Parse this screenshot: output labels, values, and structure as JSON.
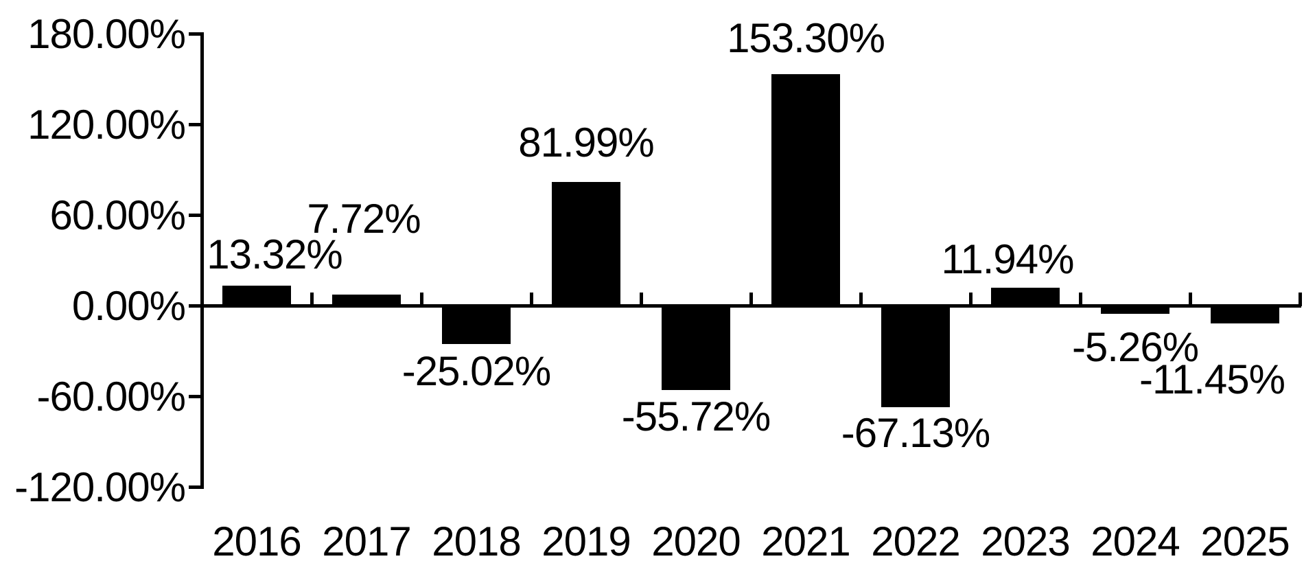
{
  "chart_data": {
    "type": "bar",
    "title": "",
    "xlabel": "",
    "ylabel": "",
    "categories": [
      "2016",
      "2017",
      "2018",
      "2019",
      "2020",
      "2021",
      "2022",
      "2023",
      "2024",
      "2025"
    ],
    "values": [
      13.32,
      7.72,
      -25.02,
      81.99,
      -55.72,
      153.3,
      -67.13,
      11.94,
      -5.26,
      -11.45
    ],
    "data_labels": [
      "13.32%",
      "7.72%",
      "-25.02%",
      "81.99%",
      "-55.72%",
      "153.30%",
      "-67.13%",
      "11.94%",
      "-5.26%",
      "-11.45%"
    ],
    "y_ticks": [
      "180.00%",
      "120.00%",
      "60.00%",
      "0.00%",
      "-60.00%",
      "-120.00%"
    ],
    "y_tick_values": [
      180,
      120,
      60,
      0,
      -60,
      -120
    ],
    "ylim": [
      -120,
      180
    ],
    "series_count": 1,
    "grid": false,
    "legend": false,
    "bar_color": "#000000",
    "axis_color": "#000000",
    "text_color": "#000000",
    "background_color": "#ffffff"
  }
}
